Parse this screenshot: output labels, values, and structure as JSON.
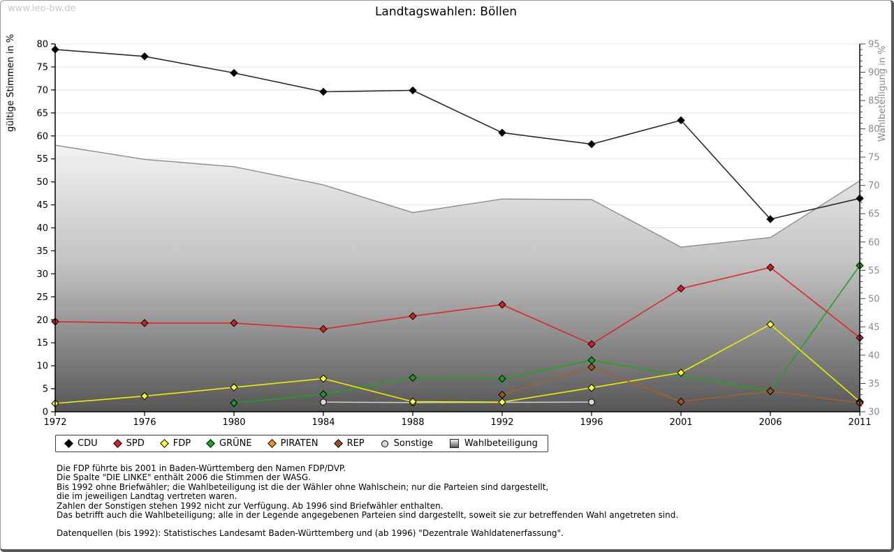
{
  "page": {
    "watermark": "www.leo-bw.de",
    "title": "Landtagswahlen: Böllen"
  },
  "legend": {
    "items": [
      {
        "label": "CDU",
        "marker": "diamond",
        "color": "#000000"
      },
      {
        "label": "SPD",
        "marker": "diamond",
        "color": "#d42222"
      },
      {
        "label": "FDP",
        "marker": "diamond",
        "color": "#ffff33"
      },
      {
        "label": "GRÜNE",
        "marker": "diamond",
        "color": "#1fa41f"
      },
      {
        "label": "PIRATEN",
        "marker": "diamond",
        "color": "#ef8f1f"
      },
      {
        "label": "REP",
        "marker": "diamond",
        "color": "#9c5427"
      },
      {
        "label": "Sonstige",
        "marker": "circle",
        "color": "#d9d9d9"
      },
      {
        "label": "Wahlbeteiligung",
        "marker": "gradient-square",
        "color": "#bbbbbb"
      }
    ]
  },
  "footnotes": {
    "lines": [
      "Die FDP führte bis 2001 in Baden-Württemberg den Namen FDP/DVP.",
      "Die Spalte \"DIE LINKE\" enthält 2006 die Stimmen der WASG.",
      "Bis 1992 ohne Briefwähler; die Wahlbeteiligung ist die der Wähler ohne Wahlschein; nur die Parteien sind dargestellt,",
      "die im jeweiligen Landtag vertreten waren.",
      "Zahlen der Sonstigen stehen 1992 nicht zur Verfügung. Ab 1996 sind Briefwähler enthalten.",
      "Das betrifft auch die Wahlbeteiligung; alle in der Legende angegebenen Parteien sind dargestellt, soweit sie zur betreffenden Wahl angetreten sind."
    ],
    "source": "Datenquellen (bis 1992): Statistisches Landesamt Baden-Württemberg und (ab 1996) \"Dezentrale Wahldatenerfassung\"."
  },
  "chart_data": {
    "type": "line",
    "title": "Landtagswahlen: Böllen",
    "x_categories": [
      "1972",
      "1976",
      "1980",
      "1984",
      "1988",
      "1992",
      "1996",
      "2001",
      "2006",
      "2011"
    ],
    "left_axis": {
      "title": "gültige Stimmen in %",
      "min": 0,
      "max": 80,
      "tick_step": 5
    },
    "right_axis": {
      "title": "Wahlbeteiligung in %",
      "min": 30,
      "max": 95,
      "tick_step": 5,
      "minor_step": 1
    },
    "grid": "horizontal",
    "legend_position": "bottom",
    "series": [
      {
        "name": "CDU",
        "axis": "left",
        "marker": "diamond",
        "line_color": "#2a2a2a",
        "marker_color": "#000000",
        "values": [
          78.8,
          77.3,
          73.7,
          69.6,
          69.9,
          60.7,
          58.2,
          63.4,
          41.9,
          46.4
        ]
      },
      {
        "name": "SPD",
        "axis": "left",
        "marker": "diamond",
        "line_color": "#dd2626",
        "marker_color": "#d41f1f",
        "values": [
          19.6,
          19.3,
          19.3,
          18.0,
          20.8,
          23.3,
          14.7,
          26.8,
          31.4,
          16.1
        ]
      },
      {
        "name": "FDP",
        "axis": "left",
        "marker": "diamond",
        "line_color": "#eeee00",
        "marker_color": "#ffff33",
        "values": [
          1.8,
          3.4,
          5.3,
          7.2,
          2.2,
          2.1,
          5.2,
          8.5,
          19.0,
          2.2
        ]
      },
      {
        "name": "GRÜNE",
        "axis": "left",
        "marker": "diamond",
        "line_color": "#1fa41f",
        "marker_color": "#1c9a1c",
        "values": [
          null,
          null,
          1.9,
          3.8,
          7.4,
          7.2,
          11.2,
          null,
          4.5,
          31.8
        ]
      },
      {
        "name": "PIRATEN",
        "axis": "left",
        "marker": "diamond",
        "line_color": "#ef8f1f",
        "marker_color": "#ef8f1f",
        "values": [
          null,
          null,
          null,
          null,
          null,
          null,
          null,
          null,
          null,
          2.1
        ]
      },
      {
        "name": "REP",
        "axis": "left",
        "marker": "diamond",
        "line_color": "#a5612d",
        "marker_color": "#9c5427",
        "values": [
          null,
          null,
          null,
          null,
          null,
          3.7,
          9.7,
          2.2,
          4.5,
          1.9
        ]
      },
      {
        "name": "Sonstige",
        "axis": "left",
        "marker": "circle",
        "line_color": "#c9c9c9",
        "marker_color": "#d9d9d9",
        "values": [
          null,
          null,
          null,
          2.1,
          2.0,
          null,
          2.1,
          null,
          null,
          null
        ]
      }
    ],
    "turnout_area": {
      "name": "Wahlbeteiligung",
      "axis": "right",
      "values": [
        77.1,
        74.6,
        73.3,
        70.1,
        65.2,
        67.6,
        67.5,
        59.1,
        60.8,
        70.8
      ],
      "edge_color": "#8c8c8c",
      "fill_top": "#f2f2f2",
      "fill_mid": "#c2c2c2",
      "fill_bottom": "#565656"
    },
    "draw_order": [
      "Sonstige",
      "GRÜNE",
      "FDP",
      "PIRATEN",
      "REP",
      "SPD",
      "CDU"
    ]
  }
}
